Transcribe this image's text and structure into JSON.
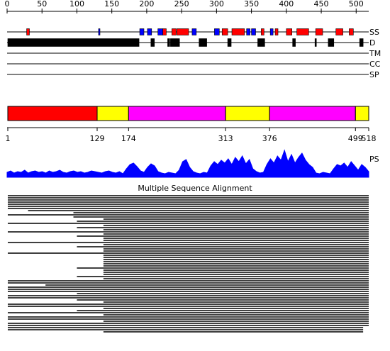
{
  "ruler": {
    "xlim": [
      0,
      518
    ],
    "ticks": [
      0,
      50,
      100,
      150,
      200,
      250,
      300,
      350,
      400,
      450,
      500
    ]
  },
  "tracks": [
    {
      "label": "SS",
      "helices": [
        [
          28,
          32
        ],
        [
          223,
          228
        ],
        [
          236,
          242
        ],
        [
          243,
          260
        ],
        [
          308,
          316
        ],
        [
          322,
          340
        ],
        [
          364,
          368
        ],
        [
          384,
          388
        ],
        [
          400,
          408
        ],
        [
          415,
          432
        ],
        [
          442,
          452
        ],
        [
          471,
          481
        ],
        [
          490,
          496
        ]
      ],
      "strands": [
        [
          131,
          133
        ],
        [
          190,
          196
        ],
        [
          201,
          207
        ],
        [
          216,
          223
        ],
        [
          265,
          271
        ],
        [
          297,
          304
        ],
        [
          343,
          348
        ],
        [
          350,
          356
        ],
        [
          377,
          381
        ]
      ]
    },
    {
      "label": "D",
      "blocks": [
        [
          1,
          189
        ],
        [
          206,
          211
        ],
        [
          230,
          233
        ],
        [
          234,
          247
        ],
        [
          275,
          286
        ],
        [
          316,
          321
        ],
        [
          359,
          369
        ],
        [
          409,
          413
        ],
        [
          441,
          443
        ],
        [
          460,
          468
        ],
        [
          505,
          510
        ]
      ]
    },
    {
      "label": "TM"
    },
    {
      "label": "CC"
    },
    {
      "label": "SP"
    }
  ],
  "domains": {
    "boundaries": [
      1,
      129,
      174,
      313,
      376,
      499,
      518
    ],
    "colors": [
      "#ff0000",
      "#ffff00",
      "#ff00ff",
      "#ffff00",
      "#ff00ff",
      "#ffff00"
    ]
  },
  "ps": {
    "label": "PS",
    "color": "#0000ff",
    "values": [
      7,
      9,
      6,
      8,
      7,
      10,
      6,
      8,
      9,
      7,
      8,
      6,
      9,
      7,
      8,
      10,
      7,
      6,
      8,
      9,
      7,
      8,
      6,
      7,
      9,
      8,
      7,
      6,
      8,
      9,
      7,
      6,
      8,
      5,
      12,
      18,
      20,
      15,
      9,
      7,
      14,
      19,
      16,
      8,
      6,
      5,
      7,
      6,
      5,
      10,
      22,
      25,
      14,
      8,
      6,
      5,
      7,
      6,
      16,
      22,
      18,
      24,
      20,
      26,
      18,
      28,
      22,
      30,
      19,
      25,
      12,
      8,
      6,
      7,
      18,
      26,
      20,
      30,
      24,
      38,
      22,
      32,
      20,
      28,
      34,
      24,
      18,
      14,
      6,
      5,
      7,
      6,
      5,
      12,
      18,
      16,
      20,
      14,
      22,
      16,
      10,
      18,
      14,
      8
    ]
  },
  "msa": {
    "title": "Multiple Sequence Alignment",
    "rows": [
      [
        1,
        518
      ],
      [
        1,
        518
      ],
      [
        1,
        518
      ],
      [
        1,
        518
      ],
      [
        1,
        518
      ],
      [
        1,
        518
      ],
      [
        1,
        518
      ],
      [
        30,
        518
      ],
      [
        95,
        518
      ],
      [
        1,
        518
      ],
      [
        95,
        518
      ],
      [
        138,
        518
      ],
      [
        100,
        518
      ],
      [
        1,
        518
      ],
      [
        138,
        518
      ],
      [
        100,
        518
      ],
      [
        138,
        518
      ],
      [
        1,
        518
      ],
      [
        138,
        518
      ],
      [
        100,
        518
      ],
      [
        138,
        518
      ],
      [
        138,
        518
      ],
      [
        1,
        518
      ],
      [
        138,
        518
      ],
      [
        100,
        518
      ],
      [
        138,
        518
      ],
      [
        138,
        518
      ],
      [
        1,
        518
      ],
      [
        138,
        518
      ],
      [
        138,
        518
      ],
      [
        138,
        518
      ],
      [
        138,
        518
      ],
      [
        138,
        518
      ],
      [
        138,
        518
      ],
      [
        100,
        518
      ],
      [
        138,
        518
      ],
      [
        138,
        518
      ],
      [
        138,
        518
      ],
      [
        100,
        518
      ],
      [
        138,
        518
      ],
      [
        1,
        518
      ],
      [
        1,
        518
      ],
      [
        55,
        518
      ],
      [
        1,
        518
      ],
      [
        1,
        518
      ],
      [
        1,
        518
      ],
      [
        100,
        518
      ],
      [
        1,
        518
      ],
      [
        1,
        518
      ],
      [
        100,
        518
      ],
      [
        138,
        518
      ],
      [
        1,
        518
      ],
      [
        1,
        518
      ],
      [
        138,
        518
      ],
      [
        100,
        518
      ],
      [
        1,
        518
      ],
      [
        138,
        518
      ],
      [
        1,
        518
      ],
      [
        1,
        518
      ],
      [
        138,
        518
      ],
      [
        1,
        518
      ],
      [
        1,
        518
      ],
      [
        1,
        510
      ],
      [
        1,
        510
      ],
      [
        138,
        510
      ]
    ]
  }
}
